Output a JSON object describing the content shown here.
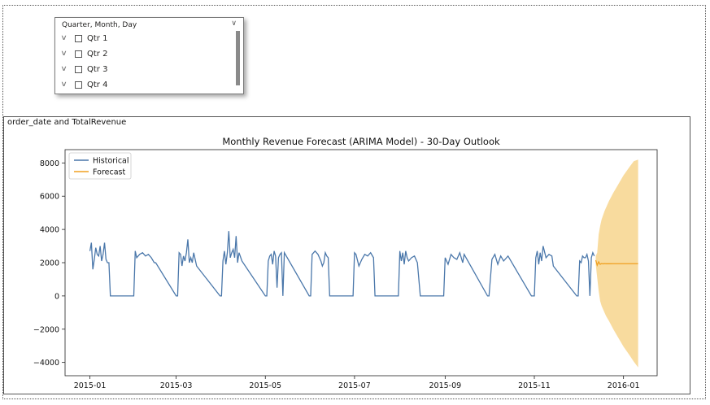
{
  "slicer": {
    "header": "Quarter, Month, Day",
    "items": [
      {
        "label": "Qtr 1"
      },
      {
        "label": "Qtr 2"
      },
      {
        "label": "Qtr 3"
      },
      {
        "label": "Qtr 4"
      }
    ]
  },
  "visual": {
    "title": "order_date and TotalRevenue"
  },
  "chart_data": {
    "type": "line",
    "title": "Monthly Revenue Forecast (ARIMA Model) - 30-Day Outlook",
    "xlabel": "",
    "ylabel": "",
    "ylim": [
      -4800,
      8800
    ],
    "xlim": [
      "2014-12-15",
      "2016-01-24"
    ],
    "yticks": [
      -4000,
      -2000,
      0,
      2000,
      4000,
      6000,
      8000
    ],
    "ytick_labels": [
      "−4000",
      "−2000",
      "0",
      "2000",
      "4000",
      "6000",
      "8000"
    ],
    "xticks": [
      "2015-01-01",
      "2015-03-01",
      "2015-05-01",
      "2015-07-01",
      "2015-09-01",
      "2015-11-01",
      "2016-01-01"
    ],
    "xtick_labels": [
      "2015-01",
      "2015-03",
      "2015-05",
      "2015-07",
      "2015-09",
      "2015-11",
      "2016-01"
    ],
    "legend": {
      "position": "top-left",
      "entries": [
        "Historical",
        "Forecast"
      ]
    },
    "colors": {
      "historical": "#4a77aa",
      "forecast": "#f0a020",
      "band": "#f5c76a"
    },
    "series": [
      {
        "name": "Historical",
        "x": [
          "2015-01-01",
          "2015-01-02",
          "2015-01-03",
          "2015-01-04",
          "2015-01-05",
          "2015-01-06",
          "2015-01-07",
          "2015-01-08",
          "2015-01-09",
          "2015-01-10",
          "2015-01-11",
          "2015-01-12",
          "2015-01-13",
          "2015-01-14",
          "2015-01-15",
          "2015-01-31",
          "2015-02-01",
          "2015-02-02",
          "2015-02-04",
          "2015-02-06",
          "2015-02-08",
          "2015-02-10",
          "2015-02-12",
          "2015-02-14",
          "2015-02-15",
          "2015-03-01",
          "2015-03-02",
          "2015-03-03",
          "2015-03-04",
          "2015-03-05",
          "2015-03-06",
          "2015-03-07",
          "2015-03-08",
          "2015-03-09",
          "2015-03-10",
          "2015-03-11",
          "2015-03-12",
          "2015-03-13",
          "2015-03-15",
          "2015-03-31",
          "2015-04-01",
          "2015-04-02",
          "2015-04-03",
          "2015-04-04",
          "2015-04-05",
          "2015-04-06",
          "2015-04-07",
          "2015-04-08",
          "2015-04-09",
          "2015-04-10",
          "2015-04-11",
          "2015-04-12",
          "2015-04-13",
          "2015-04-15",
          "2015-05-01",
          "2015-05-02",
          "2015-05-03",
          "2015-05-04",
          "2015-05-05",
          "2015-05-06",
          "2015-05-07",
          "2015-05-08",
          "2015-05-09",
          "2015-05-10",
          "2015-05-11",
          "2015-05-12",
          "2015-05-13",
          "2015-05-14",
          "2015-05-31",
          "2015-06-01",
          "2015-06-02",
          "2015-06-04",
          "2015-06-06",
          "2015-06-08",
          "2015-06-09",
          "2015-06-10",
          "2015-06-11",
          "2015-06-12",
          "2015-06-13",
          "2015-06-14",
          "2015-06-30",
          "2015-07-01",
          "2015-07-02",
          "2015-07-04",
          "2015-07-06",
          "2015-07-08",
          "2015-07-10",
          "2015-07-12",
          "2015-07-14",
          "2015-07-15",
          "2015-07-31",
          "2015-08-01",
          "2015-08-02",
          "2015-08-03",
          "2015-08-04",
          "2015-08-05",
          "2015-08-06",
          "2015-08-07",
          "2015-08-09",
          "2015-08-11",
          "2015-08-13",
          "2015-08-15",
          "2015-08-31",
          "2015-09-01",
          "2015-09-03",
          "2015-09-05",
          "2015-09-07",
          "2015-09-09",
          "2015-09-11",
          "2015-09-13",
          "2015-09-14",
          "2015-09-30",
          "2015-10-01",
          "2015-10-03",
          "2015-10-05",
          "2015-10-07",
          "2015-10-09",
          "2015-10-11",
          "2015-10-13",
          "2015-10-14",
          "2015-10-30",
          "2015-10-31",
          "2015-11-01",
          "2015-11-02",
          "2015-11-03",
          "2015-11-04",
          "2015-11-05",
          "2015-11-06",
          "2015-11-07",
          "2015-11-09",
          "2015-11-11",
          "2015-11-13",
          "2015-11-14",
          "2015-11-30",
          "2015-12-01",
          "2015-12-02",
          "2015-12-03",
          "2015-12-04",
          "2015-12-05",
          "2015-12-06",
          "2015-12-07",
          "2015-12-08",
          "2015-12-09",
          "2015-12-10",
          "2015-12-11",
          "2015-12-12"
        ],
        "values": [
          2700,
          3200,
          1600,
          2200,
          2900,
          2500,
          2400,
          3000,
          2100,
          2500,
          3200,
          2200,
          2000,
          2000,
          0,
          0,
          2700,
          2300,
          2500,
          2600,
          2400,
          2500,
          2300,
          2000,
          2000,
          0,
          0,
          2600,
          2500,
          1800,
          2400,
          2100,
          2600,
          3400,
          2000,
          2300,
          2000,
          2600,
          1800,
          0,
          0,
          2100,
          2700,
          1900,
          2600,
          3900,
          2300,
          2600,
          2800,
          2300,
          3600,
          2000,
          2600,
          2100,
          0,
          0,
          2100,
          2400,
          2500,
          1900,
          2700,
          2400,
          500,
          2300,
          2500,
          2600,
          0,
          2600,
          0,
          0,
          2500,
          2700,
          2500,
          2100,
          1800,
          2000,
          2600,
          2400,
          2300,
          0,
          0,
          2600,
          2500,
          1800,
          2200,
          2500,
          2400,
          2600,
          2300,
          0,
          0,
          2700,
          2100,
          2600,
          1900,
          2700,
          2300,
          2100,
          2300,
          2400,
          2000,
          0,
          0,
          2300,
          1900,
          2500,
          2300,
          2200,
          2600,
          2000,
          2500,
          0,
          0,
          2200,
          2500,
          1900,
          2400,
          2100,
          2300,
          2400,
          0,
          0,
          0,
          2300,
          2700,
          1900,
          2600,
          2100,
          3000,
          2300,
          2500,
          2400,
          1800,
          0,
          0,
          2100,
          2000,
          2400,
          2300,
          2300,
          2500,
          2100,
          0,
          2300,
          2600,
          2400
        ]
      },
      {
        "name": "Forecast",
        "x": [
          "2015-12-13",
          "2015-12-14",
          "2015-12-15",
          "2015-12-16",
          "2015-12-17",
          "2015-12-18",
          "2015-12-19",
          "2015-12-20",
          "2015-12-21",
          "2015-12-22",
          "2015-12-25",
          "2015-12-28",
          "2016-01-01",
          "2016-01-05",
          "2016-01-08",
          "2016-01-11"
        ],
        "values": [
          2150,
          1850,
          2050,
          1900,
          1950,
          1930,
          1945,
          1935,
          1940,
          1937,
          1938,
          1938,
          1938,
          1938,
          1938,
          1938
        ],
        "lower": [
          1900,
          1100,
          300,
          -300,
          -600,
          -800,
          -1000,
          -1200,
          -1350,
          -1500,
          -2000,
          -2450,
          -3050,
          -3550,
          -3950,
          -4300
        ],
        "upper": [
          2400,
          2600,
          3700,
          4200,
          4600,
          4850,
          5100,
          5300,
          5500,
          5700,
          6200,
          6650,
          7250,
          7750,
          8100,
          8200
        ]
      }
    ]
  }
}
